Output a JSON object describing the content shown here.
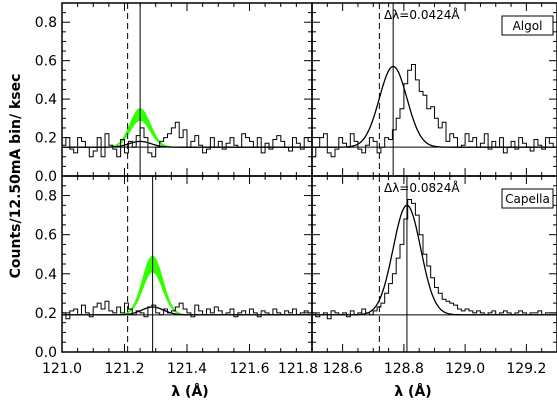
{
  "chart_data": [
    {
      "type": "line",
      "panel": "top-left",
      "xlim": [
        121.0,
        121.8
      ],
      "ylim": [
        0.0,
        0.9
      ],
      "yticks": [
        0.0,
        0.2,
        0.4,
        0.6,
        0.8
      ],
      "ytick_labels": [
        "0.0",
        "0.2",
        "0.4",
        "0.6",
        "0.8"
      ],
      "legend": "",
      "annotation": "",
      "baseline": 0.15,
      "dashed_line_x": 121.21,
      "solid_line_x": 121.25,
      "series": [
        {
          "kind": "histogram",
          "x_start": 121.0,
          "bin_width": 0.0125,
          "values": [
            0.16,
            0.2,
            0.14,
            0.12,
            0.2,
            0.18,
            0.15,
            0.1,
            0.13,
            0.2,
            0.1,
            0.22,
            0.16,
            0.14,
            0.1,
            0.19,
            0.12,
            0.18,
            0.15,
            0.21,
            0.25,
            0.2,
            0.12,
            0.1,
            0.15,
            0.18,
            0.2,
            0.22,
            0.25,
            0.28,
            0.2,
            0.24,
            0.15,
            0.18,
            0.21,
            0.16,
            0.12,
            0.14,
            0.2,
            0.15,
            0.18,
            0.14,
            0.17,
            0.2,
            0.16,
            0.15,
            0.22,
            0.2,
            0.18,
            0.15,
            0.2,
            0.12,
            0.17,
            0.14,
            0.19,
            0.21,
            0.18,
            0.15,
            0.13,
            0.2,
            0.17,
            0.14,
            0.2,
            0.18
          ]
        },
        {
          "kind": "fit",
          "center": 121.25,
          "amplitude": 0.03,
          "width": 0.035
        },
        {
          "kind": "model-band",
          "center": 121.25,
          "amp_low": 0.14,
          "amp_high": 0.2,
          "width": 0.032
        }
      ]
    },
    {
      "type": "line",
      "panel": "top-right",
      "xlim": [
        128.5,
        129.3
      ],
      "ylim": [
        0.0,
        0.9
      ],
      "legend": "Algol",
      "annotation": "Δλ=0.0424Å",
      "baseline": 0.15,
      "dashed_line_x": 128.72,
      "solid_line_x": 128.765,
      "series": [
        {
          "kind": "histogram",
          "x_start": 128.5,
          "bin_width": 0.0125,
          "values": [
            0.1,
            0.15,
            0.2,
            0.22,
            0.12,
            0.1,
            0.14,
            0.2,
            0.17,
            0.15,
            0.22,
            0.18,
            0.14,
            0.12,
            0.16,
            0.2,
            0.18,
            0.12,
            0.15,
            0.2,
            0.19,
            0.24,
            0.3,
            0.35,
            0.48,
            0.55,
            0.58,
            0.5,
            0.44,
            0.42,
            0.35,
            0.36,
            0.3,
            0.25,
            0.28,
            0.18,
            0.22,
            0.2,
            0.15,
            0.16,
            0.22,
            0.18,
            0.2,
            0.15,
            0.17,
            0.22,
            0.14,
            0.18,
            0.15,
            0.2,
            0.12,
            0.15,
            0.18,
            0.14,
            0.2,
            0.17,
            0.15,
            0.13,
            0.19,
            0.16,
            0.14,
            0.2,
            0.17,
            0.15
          ]
        },
        {
          "kind": "fit",
          "center": 128.765,
          "amplitude": 0.42,
          "width": 0.045
        }
      ]
    },
    {
      "type": "line",
      "panel": "bottom-left",
      "xlim": [
        121.0,
        121.8
      ],
      "ylim": [
        0.0,
        0.9
      ],
      "yticks": [
        0.0,
        0.2,
        0.4,
        0.6,
        0.8
      ],
      "ytick_labels": [
        "0.0",
        "0.2",
        "0.4",
        "0.6",
        "0.8"
      ],
      "legend": "",
      "annotation": "",
      "baseline": 0.19,
      "dashed_line_x": 121.21,
      "solid_line_x": 121.29,
      "series": [
        {
          "kind": "histogram",
          "x_start": 121.0,
          "bin_width": 0.0125,
          "values": [
            0.2,
            0.17,
            0.21,
            0.22,
            0.19,
            0.24,
            0.2,
            0.18,
            0.23,
            0.25,
            0.22,
            0.26,
            0.21,
            0.2,
            0.23,
            0.2,
            0.25,
            0.22,
            0.19,
            0.21,
            0.2,
            0.18,
            0.23,
            0.24,
            0.2,
            0.19,
            0.22,
            0.2,
            0.21,
            0.23,
            0.25,
            0.22,
            0.2,
            0.18,
            0.24,
            0.21,
            0.19,
            0.22,
            0.2,
            0.23,
            0.21,
            0.19,
            0.2,
            0.22,
            0.18,
            0.2,
            0.21,
            0.19,
            0.22,
            0.2,
            0.18,
            0.21,
            0.2,
            0.19,
            0.22,
            0.2,
            0.19,
            0.21,
            0.2,
            0.22,
            0.19,
            0.2,
            0.21,
            0.2
          ]
        },
        {
          "kind": "fit",
          "center": 121.29,
          "amplitude": 0.04,
          "width": 0.035
        },
        {
          "kind": "model-band",
          "center": 121.29,
          "amp_low": 0.22,
          "amp_high": 0.3,
          "width": 0.032
        }
      ]
    },
    {
      "type": "line",
      "panel": "bottom-right",
      "xlim": [
        128.5,
        129.3
      ],
      "ylim": [
        0.0,
        0.9
      ],
      "legend": "Capella",
      "annotation": "Δλ=0.0824Å",
      "baseline": 0.19,
      "dashed_line_x": 128.72,
      "solid_line_x": 128.81,
      "series": [
        {
          "kind": "histogram",
          "x_start": 128.5,
          "bin_width": 0.0125,
          "values": [
            0.2,
            0.18,
            0.19,
            0.2,
            0.17,
            0.21,
            0.2,
            0.19,
            0.2,
            0.18,
            0.21,
            0.19,
            0.2,
            0.22,
            0.2,
            0.19,
            0.21,
            0.23,
            0.25,
            0.3,
            0.35,
            0.4,
            0.48,
            0.55,
            0.68,
            0.78,
            0.76,
            0.7,
            0.6,
            0.5,
            0.44,
            0.38,
            0.33,
            0.3,
            0.27,
            0.26,
            0.25,
            0.24,
            0.22,
            0.21,
            0.22,
            0.21,
            0.2,
            0.21,
            0.2,
            0.19,
            0.2,
            0.21,
            0.19,
            0.2,
            0.21,
            0.2,
            0.19,
            0.2,
            0.21,
            0.2,
            0.19,
            0.2,
            0.2,
            0.21,
            0.19,
            0.2,
            0.2,
            0.2
          ]
        },
        {
          "kind": "fit",
          "center": 128.81,
          "amplitude": 0.56,
          "width": 0.045
        }
      ]
    }
  ],
  "axes": {
    "ylabel": "Counts/12.50mA bin/ ksec",
    "xlabel_left": "λ (Å)",
    "xlabel_right": "λ (Å)",
    "xtick_labels_left": [
      "121.0",
      "121.2",
      "121.4",
      "121.6",
      "121.8"
    ],
    "xtick_labels_right": [
      "128.6",
      "128.8",
      "129.0",
      "129.2"
    ]
  },
  "colors": {
    "band": "#33ff00",
    "line": "#000000"
  }
}
